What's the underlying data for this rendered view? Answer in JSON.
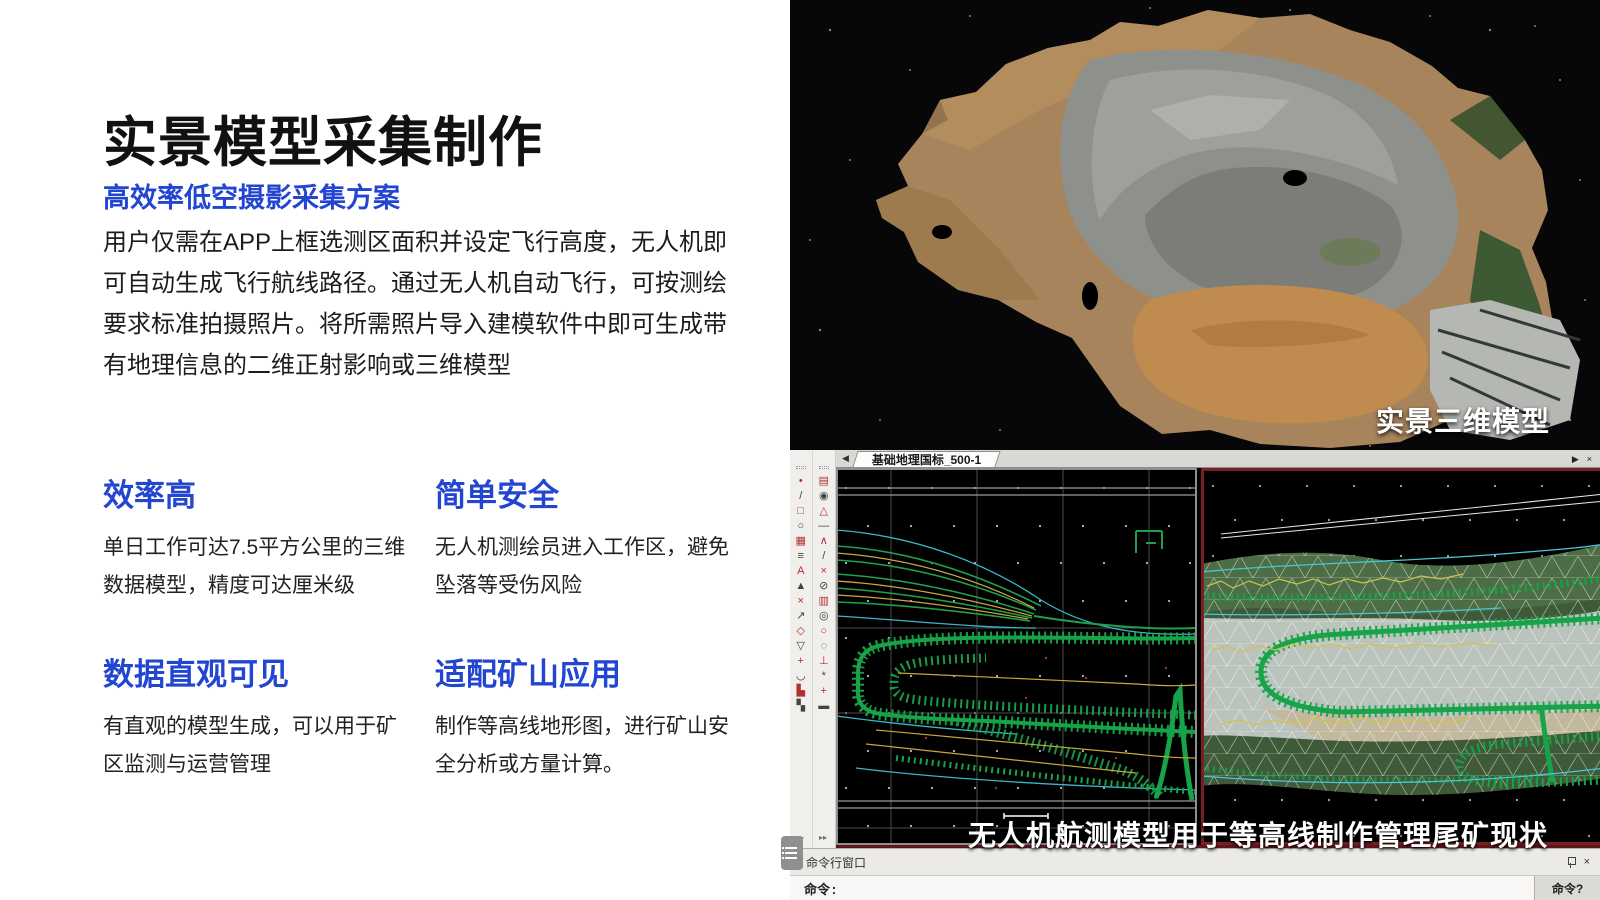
{
  "palette": {
    "accent_blue": "#2245d2",
    "title_black": "#111111",
    "cad_contour_green": "#17a34a",
    "cad_line_yellow": "#c9a93b",
    "cad_line_cyan": "#3ab6c9",
    "cad_active_viewport_border": "#7a2024",
    "viewport_background": "#000000"
  },
  "left": {
    "title": "实景模型采集制作",
    "subtitle": "高效率低空摄影采集方案",
    "paragraph": "用户仅需在APP上框选测区面积并设定飞行高度，无人机即可自动生成飞行航线路径。通过无人机自动飞行，可按测绘要求标准拍摄照片。将所需照片导入建模软件中即可生成带有地理信息的二维正射影响或三维模型",
    "features": [
      {
        "title": "效率高",
        "body": "单日工作可达7.5平方公里的三维数据模型，精度可达厘米级"
      },
      {
        "title": "简单安全",
        "body": "无人机测绘员进入工作区，避免坠落等受伤风险"
      },
      {
        "title": "数据直观可见",
        "body": "有直观的模型生成，可以用于矿区监测与运营管理"
      },
      {
        "title": "适配矿山应用",
        "body": "制作等高线地形图，进行矿山安全分析或方量计算。"
      }
    ]
  },
  "model_view": {
    "caption": "实景三维模型"
  },
  "cad": {
    "tab_label": "基础地理国标_500-1",
    "caption": "无人机航测模型用于等高线制作管理尾矿现状",
    "command_window_title": "命令行窗口",
    "command_prompt": "命令:",
    "command_status": "命令?",
    "icons": {
      "tab_scroll_left": "◀",
      "tab_scroll_right": "▶",
      "tab_close": "×",
      "window_close": "×",
      "toolbar_overflow": "▸▸"
    },
    "toolbar_col1_icons": [
      "•",
      "/",
      "□",
      "○",
      "▦",
      "≡",
      "A",
      "▲",
      "×",
      "↗",
      "◇",
      "▽",
      "+",
      "◡",
      "▙",
      "▚"
    ],
    "toolbar_col2_icons": [
      "▤",
      "◉",
      "△",
      "—",
      "∧",
      "/",
      "×",
      "⊘",
      "▥",
      "◎",
      "○",
      "◌",
      "⊥",
      "*",
      "+",
      "▬"
    ]
  }
}
